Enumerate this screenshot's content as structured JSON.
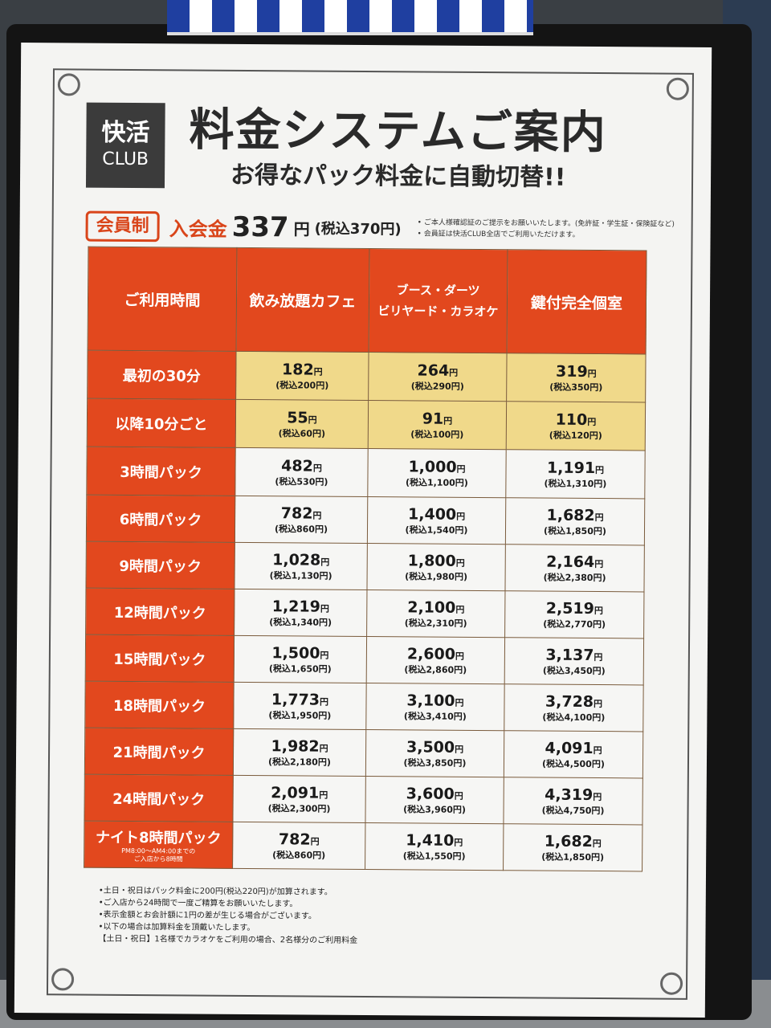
{
  "logo": {
    "line1": "快活",
    "line2": "CLUB"
  },
  "title": "料金システムご案内",
  "subtitle": "お得なパック料金に自動切替!!",
  "membership": {
    "badge": "会員制",
    "fee_label": "入会金",
    "fee_value": "337",
    "fee_unit": "円",
    "fee_tax": "(税込370円)",
    "notes": [
      "• ご本人様確認証のご提示をお願いいたします。(免許証・学生証・保険証など)",
      "• 会員証は快活CLUB全店でご利用いただけます。"
    ]
  },
  "table": {
    "headers": [
      "ご利用時間",
      "飲み放題カフェ",
      "ブース・ダーツ",
      "ビリヤード・カラオケ",
      "鍵付完全個室"
    ],
    "unit": "円",
    "rows": [
      {
        "label": "最初の30分",
        "prices": [
          [
            "182",
            "(税込200円)"
          ],
          [
            "264",
            "(税込290円)"
          ],
          [
            "319",
            "(税込350円)"
          ]
        ]
      },
      {
        "label": "以降10分ごと",
        "prices": [
          [
            "55",
            "(税込60円)"
          ],
          [
            "91",
            "(税込100円)"
          ],
          [
            "110",
            "(税込120円)"
          ]
        ]
      },
      {
        "label": "3時間パック",
        "prices": [
          [
            "482",
            "(税込530円)"
          ],
          [
            "1,000",
            "(税込1,100円)"
          ],
          [
            "1,191",
            "(税込1,310円)"
          ]
        ]
      },
      {
        "label": "6時間パック",
        "prices": [
          [
            "782",
            "(税込860円)"
          ],
          [
            "1,400",
            "(税込1,540円)"
          ],
          [
            "1,682",
            "(税込1,850円)"
          ]
        ]
      },
      {
        "label": "9時間パック",
        "prices": [
          [
            "1,028",
            "(税込1,130円)"
          ],
          [
            "1,800",
            "(税込1,980円)"
          ],
          [
            "2,164",
            "(税込2,380円)"
          ]
        ]
      },
      {
        "label": "12時間パック",
        "prices": [
          [
            "1,219",
            "(税込1,340円)"
          ],
          [
            "2,100",
            "(税込2,310円)"
          ],
          [
            "2,519",
            "(税込2,770円)"
          ]
        ]
      },
      {
        "label": "15時間パック",
        "prices": [
          [
            "1,500",
            "(税込1,650円)"
          ],
          [
            "2,600",
            "(税込2,860円)"
          ],
          [
            "3,137",
            "(税込3,450円)"
          ]
        ]
      },
      {
        "label": "18時間パック",
        "prices": [
          [
            "1,773",
            "(税込1,950円)"
          ],
          [
            "3,100",
            "(税込3,410円)"
          ],
          [
            "3,728",
            "(税込4,100円)"
          ]
        ]
      },
      {
        "label": "21時間パック",
        "prices": [
          [
            "1,982",
            "(税込2,180円)"
          ],
          [
            "3,500",
            "(税込3,850円)"
          ],
          [
            "4,091",
            "(税込4,500円)"
          ]
        ]
      },
      {
        "label": "24時間パック",
        "prices": [
          [
            "2,091",
            "(税込2,300円)"
          ],
          [
            "3,600",
            "(税込3,960円)"
          ],
          [
            "4,319",
            "(税込4,750円)"
          ]
        ]
      },
      {
        "label": "ナイト8時間パック",
        "sub1": "PM8:00〜AM4:00までの",
        "sub2": "ご入店から8時間",
        "prices": [
          [
            "782",
            "(税込860円)"
          ],
          [
            "1,410",
            "(税込1,550円)"
          ],
          [
            "1,682",
            "(税込1,850円)"
          ]
        ]
      }
    ]
  },
  "notes_bottom": [
    "•土日・祝日はパック料金に200円(税込220円)が加算されます。",
    "•ご入店から24時間で一度ご精算をお願いいたします。",
    "•表示金額とお会計額に1円の差が生じる場合がございます。",
    "•以下の場合は加算料金を頂戴いたします。",
    "【土日・祝日】1名様でカラオケをご利用の場合、2名様分のご利用料金"
  ],
  "colors": {
    "header": "#e2481e",
    "yellow": "#f0d98a",
    "frame": "#141414",
    "poster": "#f4f4f2"
  }
}
